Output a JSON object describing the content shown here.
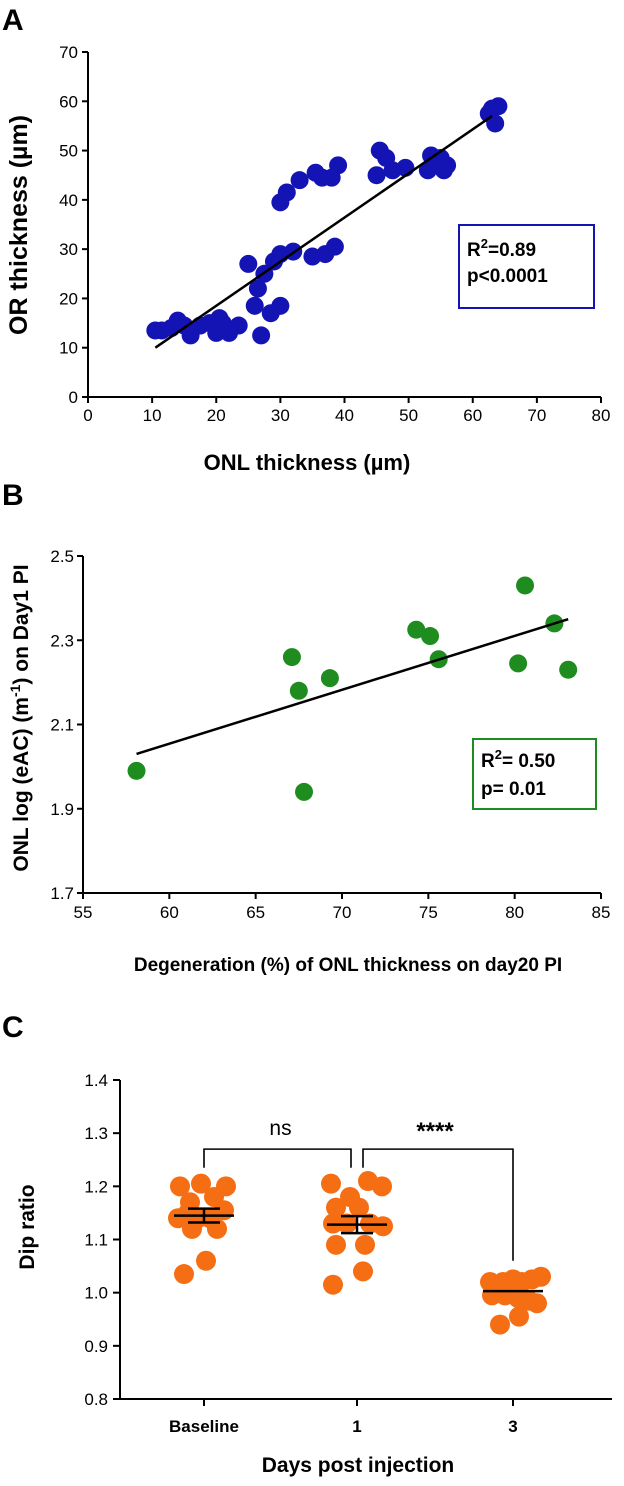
{
  "chart_data": [
    {
      "panel": "A",
      "type": "scatter",
      "title": "",
      "xlabel": "ONL thickness (µm)",
      "ylabel": "OR thickness (µm)",
      "xlim": [
        0,
        80
      ],
      "ylim": [
        0,
        70
      ],
      "xticks": [
        0,
        10,
        20,
        30,
        40,
        50,
        60,
        70,
        80
      ],
      "yticks": [
        0,
        10,
        20,
        30,
        40,
        50,
        60,
        70
      ],
      "color": "#1414b4",
      "points": [
        [
          10.5,
          13.5
        ],
        [
          11.5,
          13.5
        ],
        [
          13,
          14
        ],
        [
          14,
          15.5
        ],
        [
          15,
          14.5
        ],
        [
          16,
          12.5
        ],
        [
          17.5,
          14.5
        ],
        [
          19,
          15
        ],
        [
          20,
          13
        ],
        [
          20.5,
          16
        ],
        [
          21,
          15
        ],
        [
          22,
          13
        ],
        [
          23.5,
          14.5
        ],
        [
          25,
          27
        ],
        [
          26,
          18.5
        ],
        [
          26.5,
          22
        ],
        [
          27,
          12.5
        ],
        [
          27.5,
          25
        ],
        [
          28.5,
          17
        ],
        [
          29,
          27.5
        ],
        [
          30,
          29
        ],
        [
          30,
          18.5
        ],
        [
          30,
          39.5
        ],
        [
          31,
          41.5
        ],
        [
          32,
          29.5
        ],
        [
          33,
          44
        ],
        [
          35,
          28.5
        ],
        [
          35.5,
          45.5
        ],
        [
          36.5,
          44.5
        ],
        [
          37,
          29
        ],
        [
          38,
          44.5
        ],
        [
          38.5,
          30.5
        ],
        [
          39,
          47
        ],
        [
          45,
          45
        ],
        [
          45.5,
          50
        ],
        [
          46.5,
          48.5
        ],
        [
          47.5,
          46
        ],
        [
          49.5,
          46.5
        ],
        [
          53,
          46
        ],
        [
          53.5,
          49
        ],
        [
          54.5,
          47.5
        ],
        [
          55,
          48.5
        ],
        [
          55.5,
          46
        ],
        [
          56,
          47
        ],
        [
          62.5,
          57.5
        ],
        [
          63,
          58.5
        ],
        [
          63.5,
          55.5
        ],
        [
          64,
          59
        ]
      ],
      "fit": [
        [
          10.5,
          10
        ],
        [
          63,
          57
        ]
      ],
      "annotation": {
        "r2_prefix": "R",
        "r2_sup": "2",
        "r2_value": "=0.89",
        "p_text": "p<0.0001",
        "border_color": "#1414b4"
      }
    },
    {
      "panel": "B",
      "type": "scatter",
      "title": "",
      "xlabel": "Degeneration (%) of ONL thickness on day20 PI",
      "ylabel_parts": [
        "ONL log (eAC) (m",
        "-1",
        ") on Day1 PI"
      ],
      "xlim": [
        55,
        85
      ],
      "ylim": [
        1.7,
        2.5
      ],
      "xticks": [
        55,
        60,
        65,
        70,
        75,
        80,
        85
      ],
      "yticks": [
        1.7,
        1.9,
        2.1,
        2.3,
        2.5
      ],
      "ytick_labels": [
        "1.7",
        "1.9",
        "2.1",
        "2.3",
        "2.5"
      ],
      "color": "#1e8c1e",
      "points": [
        [
          58.1,
          1.99
        ],
        [
          67.1,
          2.26
        ],
        [
          67.5,
          2.18
        ],
        [
          67.8,
          1.94
        ],
        [
          69.3,
          2.21
        ],
        [
          74.3,
          2.325
        ],
        [
          75.1,
          2.31
        ],
        [
          75.6,
          2.255
        ],
        [
          80.2,
          2.245
        ],
        [
          80.6,
          2.43
        ],
        [
          82.3,
          2.34
        ],
        [
          83.1,
          2.23
        ]
      ],
      "fit": [
        [
          58.1,
          2.03
        ],
        [
          83.1,
          2.35
        ]
      ],
      "annotation": {
        "r2_prefix": "R",
        "r2_sup": "2",
        "r2_value": "= 0.50",
        "p_text": "p= 0.01",
        "border_color": "#1e8c1e"
      }
    },
    {
      "panel": "C",
      "type": "scatter",
      "title": "",
      "xlabel": "Days post injection",
      "ylabel": "Dip ratio",
      "categories": [
        "Baseline",
        "1",
        "3"
      ],
      "ylim": [
        0.8,
        1.4
      ],
      "yticks": [
        0.8,
        0.9,
        1.0,
        1.1,
        1.2,
        1.3,
        1.4
      ],
      "ytick_labels": [
        "0.8",
        "0.9",
        "1.0",
        "1.1",
        "1.2",
        "1.3",
        "1.4"
      ],
      "color": "#f56e14",
      "series": [
        {
          "name": "Baseline",
          "mean": 1.145,
          "sem": 0.013,
          "points": [
            [
              -0.24,
              1.2
            ],
            [
              -0.14,
              1.17
            ],
            [
              -0.03,
              1.205
            ],
            [
              0.1,
              1.18
            ],
            [
              0.22,
              1.2
            ],
            [
              -0.26,
              1.14
            ],
            [
              -0.16,
              1.15
            ],
            [
              -0.06,
              1.14
            ],
            [
              0.06,
              1.14
            ],
            [
              0.2,
              1.155
            ],
            [
              -0.12,
              1.12
            ],
            [
              0.13,
              1.12
            ],
            [
              0.02,
              1.06
            ],
            [
              -0.2,
              1.035
            ]
          ]
        },
        {
          "name": "1",
          "mean": 1.128,
          "sem": 0.016,
          "points": [
            [
              -0.26,
              1.205
            ],
            [
              -0.07,
              1.18
            ],
            [
              0.11,
              1.21
            ],
            [
              0.25,
              1.2
            ],
            [
              -0.21,
              1.16
            ],
            [
              0.02,
              1.16
            ],
            [
              -0.24,
              1.13
            ],
            [
              -0.1,
              1.13
            ],
            [
              0.13,
              1.13
            ],
            [
              0.26,
              1.125
            ],
            [
              -0.21,
              1.09
            ],
            [
              0.08,
              1.09
            ],
            [
              -0.24,
              1.015
            ],
            [
              0.06,
              1.04
            ]
          ]
        },
        {
          "name": "3",
          "mean": 1.003,
          "sem": 0.006,
          "points": [
            [
              -0.23,
              1.02
            ],
            [
              -0.1,
              1.02
            ],
            [
              0.0,
              1.025
            ],
            [
              0.09,
              1.02
            ],
            [
              0.19,
              1.025
            ],
            [
              0.28,
              1.03
            ],
            [
              -0.21,
              0.995
            ],
            [
              -0.08,
              0.995
            ],
            [
              0.05,
              0.99
            ],
            [
              0.16,
              0.985
            ],
            [
              0.24,
              0.98
            ],
            [
              -0.13,
              0.94
            ],
            [
              0.06,
              0.955
            ]
          ]
        }
      ],
      "comparisons": [
        {
          "from": 0,
          "to": 1,
          "label": "ns"
        },
        {
          "from": 1,
          "to": 2,
          "label": "****"
        }
      ]
    }
  ],
  "panel_labels": [
    "A",
    "B",
    "C"
  ]
}
